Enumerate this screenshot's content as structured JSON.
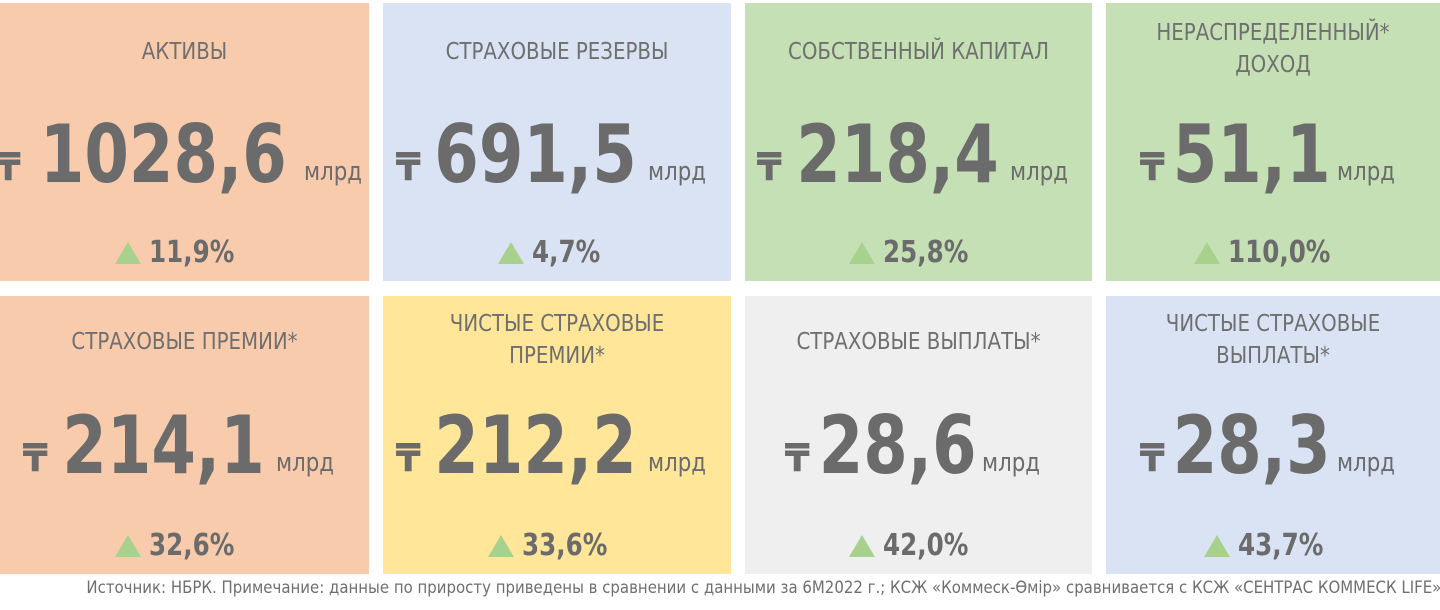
{
  "colors": {
    "peach": "#f8cbad",
    "lightblue": "#dae3f3",
    "green": "#c5e0b4",
    "yellow": "#ffe699",
    "lightgray": "#efefef",
    "text": "#6b6b6b",
    "arrow": "#a9d18e"
  },
  "currency_symbol": "₸",
  "unit": "млрд",
  "cards": [
    {
      "title_lines": [
        "АКТИВЫ"
      ],
      "value": "1028,6",
      "unit": "млрд",
      "growth": "11,9%",
      "color": "peach"
    },
    {
      "title_lines": [
        "СТРАХОВЫЕ РЕЗЕРВЫ"
      ],
      "value": "691,5",
      "unit": "млрд",
      "growth": "4,7%",
      "color": "lightblue"
    },
    {
      "title_lines": [
        "СОБСТВЕННЫЙ КАПИТАЛ"
      ],
      "value": "218,4",
      "unit": "млрд",
      "growth": "25,8%",
      "color": "green"
    },
    {
      "title_lines": [
        "НЕРАСПРЕДЕЛЕННЫЙ*",
        "ДОХОД"
      ],
      "value": "51,1",
      "unit": "млрд",
      "growth": "110,0%",
      "color": "green"
    },
    {
      "title_lines": [
        "СТРАХОВЫЕ ПРЕМИИ*"
      ],
      "value": "214,1",
      "unit": "млрд",
      "growth": "32,6%",
      "color": "peach"
    },
    {
      "title_lines": [
        "ЧИСТЫЕ СТРАХОВЫЕ",
        "ПРЕМИИ*"
      ],
      "value": "212,2",
      "unit": "млрд",
      "growth": "33,6%",
      "color": "yellow"
    },
    {
      "title_lines": [
        "СТРАХОВЫЕ ВЫПЛАТЫ*"
      ],
      "value": "28,6",
      "unit": "млрд",
      "growth": "42,0%",
      "color": "lightgray"
    },
    {
      "title_lines": [
        "ЧИСТЫЕ СТРАХОВЫЕ",
        "ВЫПЛАТЫ*"
      ],
      "value": "28,3",
      "unit": "млрд",
      "growth": "43,7%",
      "color": "lightblue"
    }
  ],
  "footer": {
    "source": "Источник: НБРК. Примечание: данные по приросту приведены в сравнении с данными за 6М2022 г.; КСЖ «Коммеск-Өмір» сравнивается с КСЖ «СЕНТРАС КОММЕСК LIFE»"
  }
}
